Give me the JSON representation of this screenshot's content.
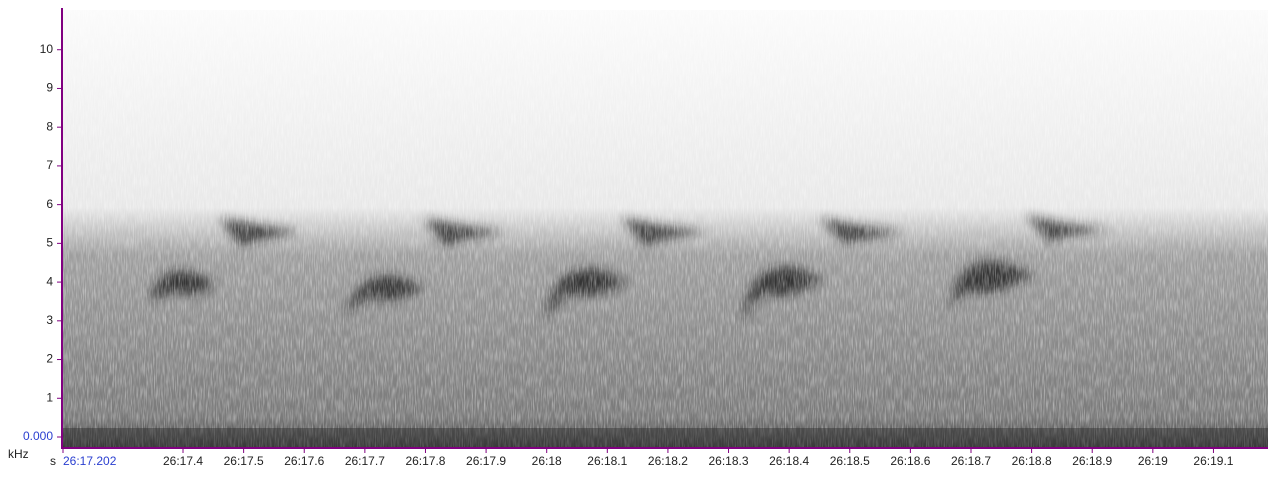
{
  "chart_data": {
    "type": "spectrogram",
    "x_label": "s",
    "y_label": "kHz",
    "xlim": [
      1577.202,
      1579.19
    ],
    "ylim": [
      0,
      11
    ],
    "axis_color": "#800080",
    "origin_label_color": "#2a3fd0",
    "xticks": [
      {
        "value": 1577.202,
        "label": "26:17.202"
      },
      {
        "value": 1577.4,
        "label": "26:17.4"
      },
      {
        "value": 1577.5,
        "label": "26:17.5"
      },
      {
        "value": 1577.6,
        "label": "26:17.6"
      },
      {
        "value": 1577.7,
        "label": "26:17.7"
      },
      {
        "value": 1577.8,
        "label": "26:17.8"
      },
      {
        "value": 1577.9,
        "label": "26:17.9"
      },
      {
        "value": 1578,
        "label": "26:18"
      },
      {
        "value": 1578.1,
        "label": "26:18.1"
      },
      {
        "value": 1578.2,
        "label": "26:18.2"
      },
      {
        "value": 1578.3,
        "label": "26:18.3"
      },
      {
        "value": 1578.4,
        "label": "26:18.4"
      },
      {
        "value": 1578.5,
        "label": "26:18.5"
      },
      {
        "value": 1578.6,
        "label": "26:18.6"
      },
      {
        "value": 1578.7,
        "label": "26:18.7"
      },
      {
        "value": 1578.8,
        "label": "26:18.8"
      },
      {
        "value": 1578.9,
        "label": "26:18.9"
      },
      {
        "value": 1579,
        "label": "26:19"
      },
      {
        "value": 1579.1,
        "label": "26:19.1"
      }
    ],
    "yticks": [
      {
        "value": 0,
        "label": "0.000"
      },
      1,
      2,
      3,
      4,
      5,
      6,
      7,
      8,
      9,
      10
    ]
  }
}
